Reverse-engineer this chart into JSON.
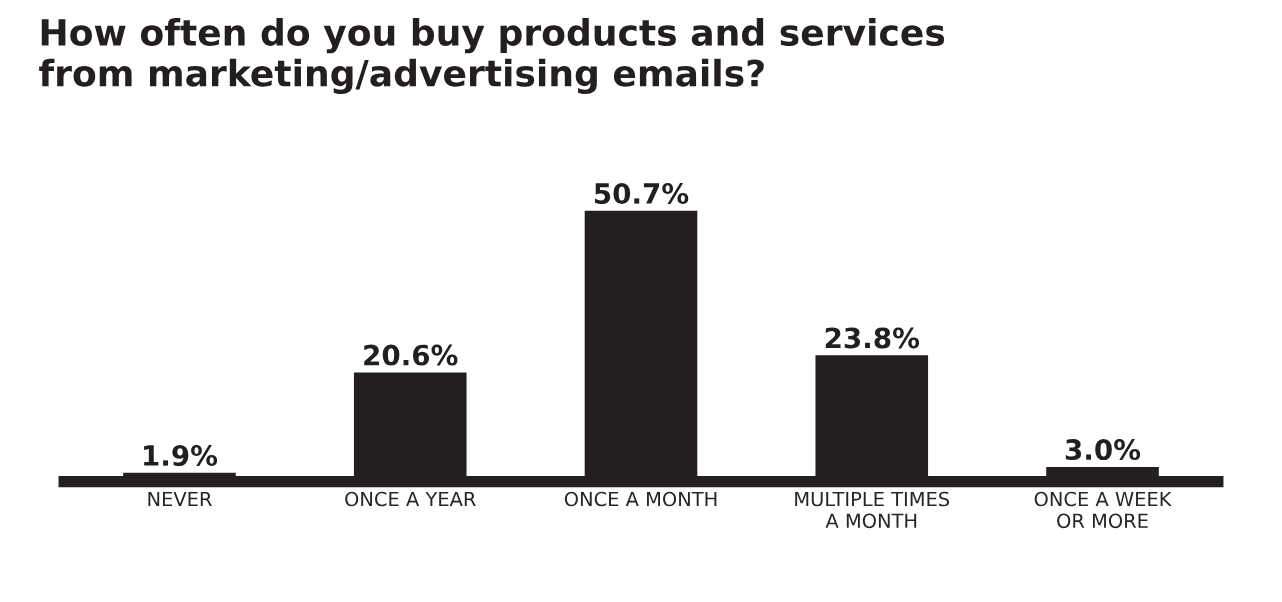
{
  "chart_data": {
    "type": "bar",
    "title": "How often do you buy products and services\nfrom marketing/advertising emails?",
    "categories": [
      "NEVER",
      "ONCE A YEAR",
      "ONCE A MONTH",
      "MULTIPLE TIMES\nA MONTH",
      "ONCE A WEEK\nOR MORE"
    ],
    "values": [
      1.9,
      20.6,
      50.7,
      23.8,
      3.0
    ],
    "value_labels": [
      "1.9%",
      "20.6%",
      "50.7%",
      "23.8%",
      "3.0%"
    ],
    "color": "#231f20",
    "tick_labels": "x"
  }
}
